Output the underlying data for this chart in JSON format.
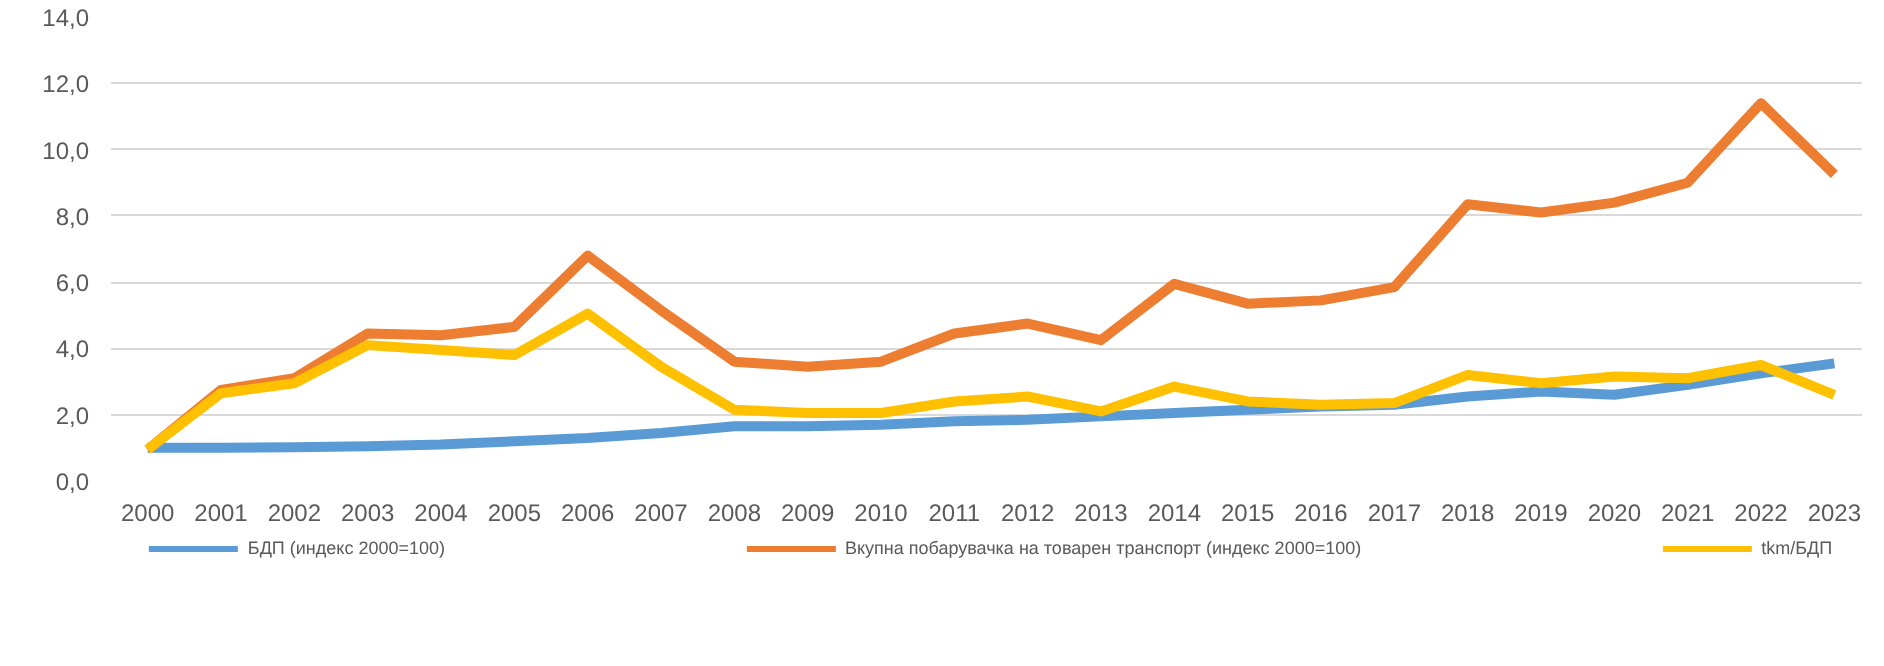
{
  "chart_data": {
    "type": "line",
    "categories": [
      "2000",
      "2001",
      "2002",
      "2003",
      "2004",
      "2005",
      "2006",
      "2007",
      "2008",
      "2009",
      "2010",
      "2011",
      "2012",
      "2013",
      "2014",
      "2015",
      "2016",
      "2017",
      "2018",
      "2019",
      "2020",
      "2021",
      "2022",
      "2023"
    ],
    "series": [
      {
        "name": "БДП (индекс 2000=100)",
        "color": "#5b9bd5",
        "values": [
          1.0,
          1.0,
          1.02,
          1.05,
          1.1,
          1.2,
          1.3,
          1.45,
          1.65,
          1.65,
          1.7,
          1.8,
          1.85,
          1.95,
          2.05,
          2.15,
          2.25,
          2.3,
          2.55,
          2.7,
          2.6,
          2.9,
          3.25,
          3.55
        ]
      },
      {
        "name": "Вкупна побарувачка на товарен транспорт (индекс 2000=100)",
        "color": "#ed7d31",
        "values": [
          0.95,
          2.75,
          3.1,
          4.45,
          4.4,
          4.65,
          6.8,
          5.15,
          3.6,
          3.45,
          3.6,
          4.45,
          4.75,
          4.25,
          5.95,
          5.35,
          5.45,
          5.85,
          8.35,
          8.1,
          8.4,
          9.0,
          11.4,
          9.25
        ]
      },
      {
        "name": "tkm/БДП",
        "color": "#ffc000",
        "values": [
          0.95,
          2.65,
          2.95,
          4.1,
          3.95,
          3.8,
          5.05,
          3.45,
          2.15,
          2.05,
          2.05,
          2.4,
          2.55,
          2.1,
          2.85,
          2.4,
          2.3,
          2.35,
          3.2,
          2.95,
          3.15,
          3.1,
          3.5,
          2.6
        ]
      }
    ],
    "ylim": [
      0,
      14
    ],
    "yticks": [
      {
        "value": 0,
        "label": "0,0"
      },
      {
        "value": 2,
        "label": "2,0"
      },
      {
        "value": 4,
        "label": "4,0"
      },
      {
        "value": 6,
        "label": "6,0"
      },
      {
        "value": 8,
        "label": "8,0"
      },
      {
        "value": 10,
        "label": "10,0"
      },
      {
        "value": 12,
        "label": "12,0"
      },
      {
        "value": 14,
        "label": "14,0"
      }
    ],
    "grid": "y",
    "legend": "bottom",
    "marker": "none",
    "line_style": "solid"
  }
}
